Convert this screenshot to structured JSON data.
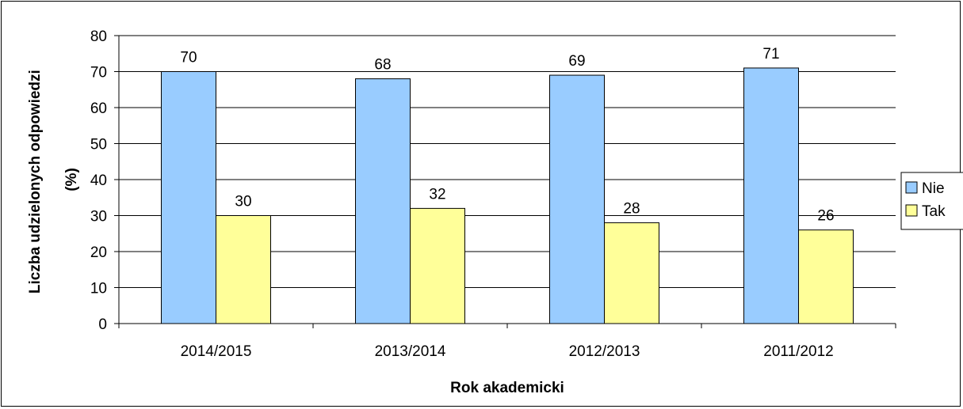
{
  "chart_data": {
    "type": "bar",
    "categories": [
      "2014/2015",
      "2013/2014",
      "2012/2013",
      "2011/2012"
    ],
    "series": [
      {
        "name": "Nie",
        "values": [
          70,
          68,
          69,
          71
        ],
        "labels": [
          "70",
          "68",
          "69",
          "71"
        ],
        "color": "#99ccff"
      },
      {
        "name": "Tak",
        "values": [
          30,
          32,
          28,
          26
        ],
        "labels": [
          "30",
          "32",
          "28",
          "26"
        ],
        "color": "#ffff99"
      }
    ],
    "xlabel": "Rok akademicki",
    "ylabel_line1": "Liczba udzielonych odpowiedzi",
    "ylabel_line2": "(%)",
    "ylim": [
      0,
      80
    ],
    "yticks": [
      0,
      10,
      20,
      30,
      40,
      50,
      60,
      70,
      80
    ],
    "grid": true,
    "legend_position": "right"
  }
}
